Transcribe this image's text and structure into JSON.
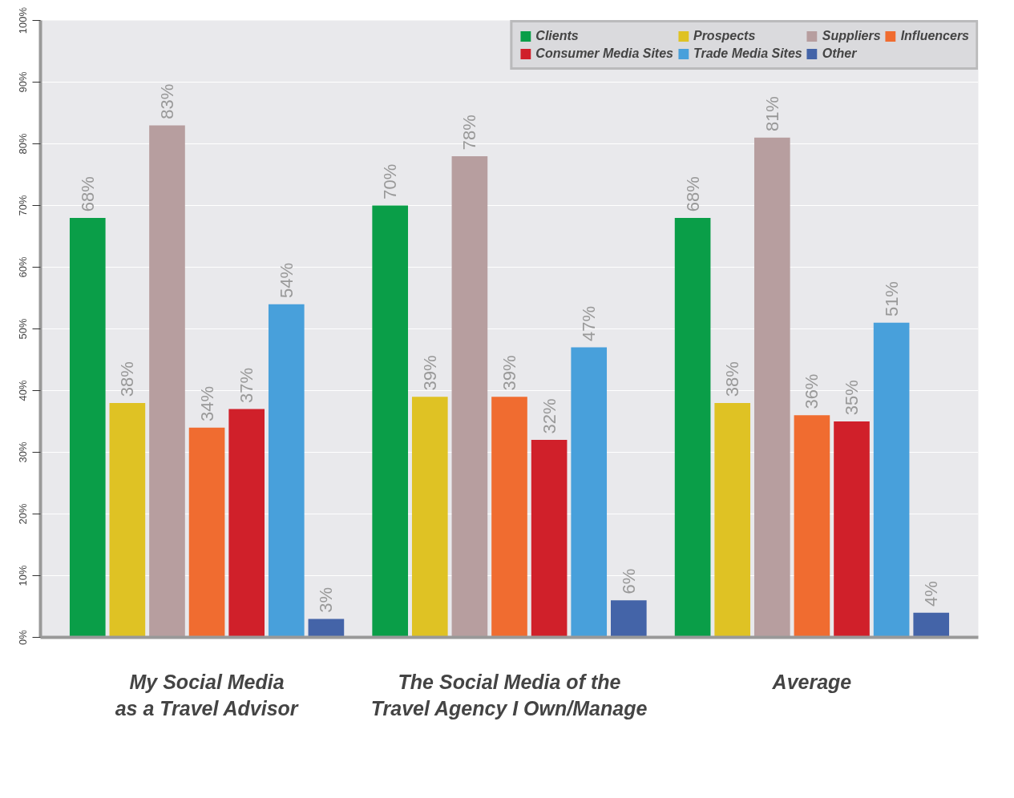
{
  "chart_data": {
    "type": "bar",
    "categories": [
      "My Social Media\nas a Travel Advisor",
      "The Social Media of the\nTravel Agency I Own/Manage",
      "Average"
    ],
    "series": [
      {
        "name": "Clients",
        "color": "#0a9e48",
        "values": [
          68,
          70,
          68
        ],
        "value_labels": [
          "68%",
          "70%",
          "68%"
        ]
      },
      {
        "name": "Prospects",
        "color": "#dfc224",
        "values": [
          38,
          39,
          38
        ],
        "value_labels": [
          "38%",
          "39%",
          "38%"
        ]
      },
      {
        "name": "Suppliers",
        "color": "#b79e9f",
        "values": [
          83,
          78,
          81
        ],
        "value_labels": [
          "83%",
          "78%",
          "81%"
        ]
      },
      {
        "name": "Influencers",
        "color": "#f06c30",
        "values": [
          34,
          39,
          36
        ],
        "value_labels": [
          "34%",
          "39%",
          "36%"
        ]
      },
      {
        "name": "Consumer Media Sites",
        "color": "#d0202a",
        "values": [
          37,
          32,
          35
        ],
        "value_labels": [
          "37%",
          "32%",
          "35%"
        ]
      },
      {
        "name": "Trade Media Sites",
        "color": "#48a0db",
        "values": [
          54,
          47,
          51
        ],
        "value_labels": [
          "54%",
          "47%",
          "51%"
        ]
      },
      {
        "name": "Other",
        "color": "#4464a8",
        "values": [
          3,
          6,
          4
        ],
        "value_labels": [
          "3%",
          "6%",
          "4%"
        ]
      }
    ],
    "ylim": [
      0,
      100
    ],
    "yticks": [
      {
        "value": 0,
        "label": "0%"
      },
      {
        "value": 10,
        "label": "10%"
      },
      {
        "value": 20,
        "label": "20%"
      },
      {
        "value": 30,
        "label": "30%"
      },
      {
        "value": 40,
        "label": "40%"
      },
      {
        "value": 50,
        "label": "50%"
      },
      {
        "value": 60,
        "label": "60%"
      },
      {
        "value": 70,
        "label": "70%"
      },
      {
        "value": 80,
        "label": "80%"
      },
      {
        "value": 90,
        "label": "90%"
      },
      {
        "value": 100,
        "label": "100%"
      }
    ],
    "grid": "y",
    "legend": "top right"
  }
}
